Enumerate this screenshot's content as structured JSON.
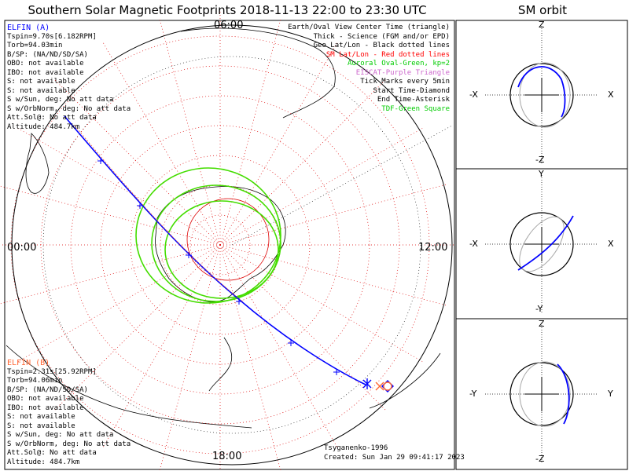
{
  "title": "Southern Solar Magnetic Footprints 2018-11-13 22:00 to 23:30 UTC",
  "sm_title": "SM orbit",
  "map": {
    "mlt_top": "06:00",
    "mlt_left": "00:00",
    "mlt_right": "12:00",
    "mlt_bottom": "18:00"
  },
  "elfin_a": {
    "name": "ELFIN (A)",
    "color": "#0000ff",
    "lines": [
      "Tspin=9.70s[6.182RPM]",
      "Torb=94.03min",
      "B/SP: (NA/ND/SD/SA)",
      "OBO: not available",
      "IBO: not available",
      "S: not available",
      "S: not available",
      "S w/Sun, deg: No att data",
      "S w/OrbNorm, deg: No att data",
      "Att.Sol@: No att data",
      "Altitude: 484.7km"
    ]
  },
  "elfin_b": {
    "name": "ELFIN (B)",
    "color": "#ff6633",
    "lines": [
      "Tspin=2.31s[25.92RPM]",
      "Torb=94.06min",
      "B/SP: (NA/ND/SD/SA)",
      "OBO: not available",
      "IBO: not available",
      "S: not available",
      "S: not available",
      "S w/Sun, deg: No att data",
      "S w/OrbNorm, deg: No att data",
      "Att.Sol@: No att data",
      "Altitude: 484.7km"
    ]
  },
  "legend": [
    {
      "text": "Earth/Oval View Center Time (triangle)",
      "color": "#000000"
    },
    {
      "text": "Thick - Science (FGM and/or EPD)",
      "color": "#000000"
    },
    {
      "text": "Geo Lat/Lon - Black dotted lines",
      "color": "#000000"
    },
    {
      "text": "SM Lat/Lon - Red dotted lines",
      "color": "#ff0000"
    },
    {
      "text": "Auroral Oval-Green, kp=2",
      "color": "#00cc00"
    },
    {
      "text": "EISCAT-Purple Triangle",
      "color": "#cc66cc"
    },
    {
      "text": "Tick Marks every 5min",
      "color": "#000000"
    },
    {
      "text": "Start Time-Diamond",
      "color": "#000000"
    },
    {
      "text": "End Time-Asterisk",
      "color": "#000000"
    },
    {
      "text": "TDF-Green Square",
      "color": "#00cc00"
    }
  ],
  "credit": "Tsyganenko-1996",
  "created": "Created: Sun Jan 29 09:41:17 2023",
  "orbit_panels": [
    {
      "top": "Z",
      "bottom": "-Z",
      "left": "-X",
      "right": "X"
    },
    {
      "top": "Y",
      "bottom": "-Y",
      "left": "-X",
      "right": "X"
    },
    {
      "top": "Z",
      "bottom": "-Z",
      "left": "-Y",
      "right": "Y"
    }
  ],
  "colors": {
    "track": "#0000ff",
    "oval": "#44dd00",
    "sm_grid": "#dd0000",
    "geo_grid": "#000000"
  }
}
